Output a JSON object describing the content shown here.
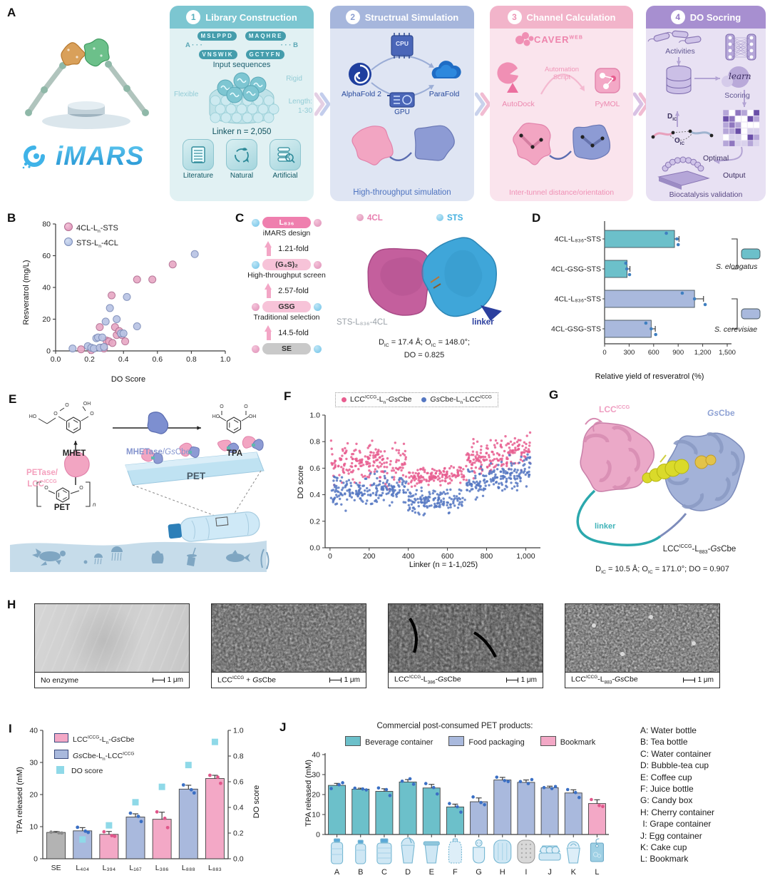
{
  "theme": {
    "teal": "#6cc0ca",
    "teal_dark": "#2e8a99",
    "blue": "#a9b9dd",
    "blue_dark": "#5577c2",
    "pink": "#f3a8c6",
    "pink_dark": "#e85d8f",
    "purple": "#a78fd0",
    "gray": "#b3b3b3",
    "cyan_square": "#8fd9e8",
    "logo_blue": "#3fb3e8"
  },
  "panelA": {
    "label": "A",
    "logo": "iMARS",
    "steps": [
      {
        "num": "1",
        "title": "Library Construction",
        "seq_left_top": "MSLPPD",
        "seq_right_top": "MAQHRE",
        "label_a": "A",
        "dots_a": "· · ·",
        "dots_b": "· · ·",
        "label_b": "B",
        "seq_left_bottom": "VNSWIK",
        "seq_right_bottom": "GCTYFN",
        "input_label": "Input sequences",
        "flexible": "Flexible",
        "rigid": "Rigid",
        "length_label": "Length:",
        "length_value": "1-30",
        "linker_label": "Linker n = 2,050",
        "tiles": [
          {
            "label": "Literature"
          },
          {
            "label": "Natural"
          },
          {
            "label": "Artificial"
          }
        ]
      },
      {
        "num": "2",
        "title": "Structrual Simulation",
        "cpu": "CPU",
        "alphafold": "AlphaFold 2",
        "parafold": "ParaFold",
        "gpu": "GPU",
        "caption": "High-throughput simulation"
      },
      {
        "num": "3",
        "title": "Channel Calculation",
        "caver": "CAVER",
        "caver_sup": "WEB",
        "autodock": "AutoDock",
        "automation": "Automation",
        "script": "Script",
        "pymol": "PyMOL",
        "caption": "Inter-tunnel distance/orientation"
      },
      {
        "num": "4",
        "title": "DO Socring",
        "activities": "Activities",
        "learn": "learn",
        "scoring": "Scoring",
        "dic_html": "D<sub>IC</sub>",
        "oic_html": "O<sub>IC</sub>",
        "optimal": "Optimal",
        "output": "Output",
        "caption": "Biocatalysis validation"
      }
    ]
  },
  "panelB": {
    "label": "B",
    "legend": [
      {
        "html": "4CL-L<sub>n</sub>-STS"
      },
      {
        "html": "STS-L<sub>n</sub>-4CL"
      }
    ]
  },
  "panelC": {
    "label": "C",
    "ladder": [
      {
        "type": "chip",
        "chip": "L₈₃₆",
        "style": "hot",
        "left_dot": "dblue",
        "right_dot": "dpink"
      },
      {
        "type": "lbl",
        "label": "iMARS design"
      },
      {
        "type": "fold",
        "fold": "1.21-fold"
      },
      {
        "type": "chip",
        "chip": "(G₄S)₂",
        "style": "light",
        "left_dot": "dblue",
        "right_dot": "dpink"
      },
      {
        "type": "lbl",
        "label": "High-throughput screen"
      },
      {
        "type": "fold",
        "fold": "2.57-fold"
      },
      {
        "type": "chip",
        "chip": "GSG",
        "style": "light",
        "left_dot": "dpink",
        "right_dot": "dblue"
      },
      {
        "type": "lbl",
        "label": "Traditional selection"
      },
      {
        "type": "fold",
        "fold": "14.5-fold"
      },
      {
        "type": "chip",
        "chip": "SE",
        "style": "gray",
        "left_dot": "dpink",
        "right_dot": "dblue"
      }
    ],
    "legend_4cl": "4CL",
    "legend_sts": "STS",
    "struct_label": "STS-L₈₃₆-4CL",
    "linker_label": "linker",
    "caption_html": "D<sub>IC</sub> = 17.4 Å; O<sub>IC</sub> = 148.0°;<br>DO = 0.825"
  },
  "panelD": {
    "label": "D",
    "groups": [
      {
        "html": "<i>S. elongatus</i>"
      },
      {
        "html": "<i>S. cerevisiae</i>"
      }
    ]
  },
  "panelE": {
    "label": "E",
    "mhet": "MHET",
    "enzyme_html": "<b>MHETase</b>/<i>Gs</i>Cbe",
    "tpa": "TPA",
    "petase_html": "PETase/<br>LCC<sup>ICCG</sup>",
    "pet_struct": "PET",
    "pet_sheet": "PET",
    "atoms": {
      "o": "O",
      "oh": "OH",
      "ho": "HO",
      "n": "n"
    }
  },
  "panelF": {
    "label": "F",
    "legend": [
      {
        "html": "LCC<sup>ICCG</sup>-L<sub>n</sub>-<i>Gs</i>Cbe",
        "color": "#e85d8f"
      },
      {
        "html": "<i>Gs</i>Cbe-L<sub>n</sub>-LCC<sup>ICCG</sup>",
        "color": "#5577c2"
      }
    ]
  },
  "panelG": {
    "label": "G",
    "lcc_html": "LCC<sup>ICCG</sup>",
    "gscbe_html": "<i>Gs</i>Cbe",
    "linker": "linker",
    "name_html": "LCC<sup>ICCG</sup>-L<sub>883</sub>-<i>Gs</i>Cbe",
    "caption_html": "D<sub>IC</sub> = 10.5 Å; O<sub>IC</sub> = 171.0°; DO = 0.907"
  },
  "panelH": {
    "label": "H",
    "images": [
      {
        "label_html": "No enzyme",
        "scale": "1 μm"
      },
      {
        "label_html": "LCC<sup>ICCG</sup> + <i>Gs</i>Cbe",
        "scale": "1 μm"
      },
      {
        "label_html": "LCC<sup>ICCG</sup>-L<sub>386</sub>-<i>Gs</i>Cbe",
        "scale": "1 μm"
      },
      {
        "label_html": "LCC<sup>ICCG</sup>-L<sub>883</sub>-<i>Gs</i>Cbe",
        "scale": "1 μm"
      }
    ]
  },
  "panelI": {
    "label": "I",
    "legend": [
      {
        "html": "LCC<sup>ICCG</sup>-L<sub>n</sub>-<i>Gs</i>Cbe",
        "color": "#f3a8c6",
        "square": false
      },
      {
        "html": "<i>Gs</i>Cbe-L<sub>n</sub>-LCC<sup>ICCG</sup>",
        "color": "#a9b9dd",
        "square": false
      },
      {
        "html": "DO score",
        "color": "#8fd9e8",
        "square": true
      }
    ]
  },
  "panelJ": {
    "label": "J",
    "products": [
      "A: Water bottle",
      "B: Tea bottle",
      "C: Water container",
      "D: Bubble-tea cup",
      "E: Coffee cup",
      "F: Juice bottle",
      "G: Candy box",
      "H: Cherry container",
      " I: Grape container",
      "J: Egg container",
      "K: Cake cup",
      "L: Bookmark"
    ]
  },
  "chart_data": [
    {
      "id": "B",
      "type": "scatter",
      "xlabel": "DO Score",
      "ylabel": "Resveratrol (mg/L)",
      "xlim": [
        0,
        1
      ],
      "ylim": [
        0,
        80
      ],
      "xticks": [
        {
          "v": 0,
          "l": "0.0"
        },
        {
          "v": 0.2,
          "l": "0.2"
        },
        {
          "v": 0.4,
          "l": "0.4"
        },
        {
          "v": 0.6,
          "l": "0.6"
        },
        {
          "v": 0.8,
          "l": "0.8"
        },
        {
          "v": 1,
          "l": "1.0"
        }
      ],
      "yticks": [
        {
          "v": 0,
          "l": "0"
        },
        {
          "v": 20,
          "l": "20"
        },
        {
          "v": 40,
          "l": "40"
        },
        {
          "v": 60,
          "l": "60"
        },
        {
          "v": 80,
          "l": "80"
        }
      ],
      "series": [
        {
          "name": "4CL-Ln-STS",
          "fill": "#e8a9c5",
          "stroke": "#b26d92",
          "points": [
            [
              0.15,
              1
            ],
            [
              0.21,
              0.5
            ],
            [
              0.26,
              15
            ],
            [
              0.27,
              2
            ],
            [
              0.285,
              1.5
            ],
            [
              0.3,
              6.5
            ],
            [
              0.315,
              6
            ],
            [
              0.33,
              35
            ],
            [
              0.335,
              5
            ],
            [
              0.35,
              15
            ],
            [
              0.36,
              10
            ],
            [
              0.375,
              12.5
            ],
            [
              0.39,
              10
            ],
            [
              0.41,
              6
            ],
            [
              0.48,
              45
            ],
            [
              0.57,
              45
            ],
            [
              0.69,
              54.5
            ]
          ]
        },
        {
          "name": "STS-Ln-4CL",
          "fill": "#b9c4e4",
          "stroke": "#7c8cb8",
          "points": [
            [
              0.1,
              1.5
            ],
            [
              0.19,
              3
            ],
            [
              0.21,
              2
            ],
            [
              0.225,
              1.5
            ],
            [
              0.24,
              8
            ],
            [
              0.25,
              8.5
            ],
            [
              0.26,
              2
            ],
            [
              0.275,
              8.5
            ],
            [
              0.285,
              2.5
            ],
            [
              0.295,
              18.5
            ],
            [
              0.32,
              27
            ],
            [
              0.36,
              20
            ],
            [
              0.385,
              11
            ],
            [
              0.4,
              11
            ],
            [
              0.42,
              34
            ],
            [
              0.48,
              15.5
            ],
            [
              0.82,
              61
            ]
          ]
        }
      ]
    },
    {
      "id": "D",
      "type": "bar-horizontal",
      "xlabel": "Relative yield of resveratrol (%)",
      "xlim": [
        0,
        1500
      ],
      "xticks": [
        {
          "v": 0,
          "l": "0"
        },
        {
          "v": 300,
          "l": "300"
        },
        {
          "v": 600,
          "l": "600"
        },
        {
          "v": 900,
          "l": "900"
        },
        {
          "v": 1200,
          "l": "1,200"
        },
        {
          "v": 1500,
          "l": "1,500"
        }
      ],
      "categories": [
        "4CL-L₈₃₆-STS",
        "4CL-GSG-STS",
        "4CL-L₈₃₆-STS",
        "4CL-GSG-STS"
      ],
      "values": [
        855,
        275,
        1100,
        570
      ],
      "errors": [
        55,
        35,
        110,
        50
      ],
      "colors": [
        "#6cc0ca",
        "#6cc0ca",
        "#a9b9dd",
        "#a9b9dd"
      ],
      "dots": [
        [
          755,
          885,
          900
        ],
        [
          260,
          272,
          305
        ],
        [
          950,
          1100,
          1230
        ],
        [
          505,
          570,
          625
        ]
      ],
      "dot_color": "#3f7fc0",
      "groups": [
        {
          "bars": [
            0,
            1
          ],
          "organism": "S. elongatus",
          "swatch": "#6cc0ca"
        },
        {
          "bars": [
            2,
            3
          ],
          "organism": "S. cerevisiae",
          "swatch": "#a9b9dd"
        }
      ]
    },
    {
      "id": "F",
      "type": "scatter-dense",
      "xlabel": "Linker (n = 1-1,025)",
      "ylabel": "DO score",
      "xlim": [
        -25,
        1075
      ],
      "ylim": [
        0,
        1
      ],
      "seed": 42,
      "point_radius": 1.7,
      "xticks": [
        {
          "v": 0,
          "l": "0"
        },
        {
          "v": 200,
          "l": "200"
        },
        {
          "v": 400,
          "l": "400"
        },
        {
          "v": 600,
          "l": "600"
        },
        {
          "v": 800,
          "l": "800"
        },
        {
          "v": 1000,
          "l": "1,000"
        }
      ],
      "yticks": [
        {
          "v": 0,
          "l": "0.0"
        },
        {
          "v": 0.2,
          "l": "0.2"
        },
        {
          "v": 0.4,
          "l": "0.4"
        },
        {
          "v": 0.6,
          "l": "0.6"
        },
        {
          "v": 0.8,
          "l": "0.8"
        },
        {
          "v": 1,
          "l": "1.0"
        }
      ],
      "series": [
        {
          "name": "LCC-ICCG-Ln-GsCbe",
          "color": "#e85d8f",
          "segments": [
            {
              "x0": 5,
              "x1": 390,
              "n": 200,
              "y0": 0.64,
              "y1": 0.63,
              "ys": 0.105
            },
            {
              "x0": 395,
              "x1": 690,
              "n": 140,
              "y0": 0.52,
              "y1": 0.56,
              "ys": 0.045
            },
            {
              "x0": 695,
              "x1": 1025,
              "n": 180,
              "y0": 0.66,
              "y1": 0.74,
              "ys": 0.09
            }
          ],
          "clamp": [
            0.28,
            0.93
          ]
        },
        {
          "name": "GsCbe-Ln-LCC-ICCG",
          "color": "#5577c2",
          "segments": [
            {
              "x0": 5,
              "x1": 390,
              "n": 200,
              "y0": 0.42,
              "y1": 0.44,
              "ys": 0.085
            },
            {
              "x0": 395,
              "x1": 690,
              "n": 140,
              "y0": 0.34,
              "y1": 0.36,
              "ys": 0.068
            },
            {
              "x0": 695,
              "x1": 1025,
              "n": 180,
              "y0": 0.46,
              "y1": 0.6,
              "ys": 0.085
            }
          ],
          "clamp": [
            0.15,
            0.72
          ]
        }
      ]
    },
    {
      "id": "I",
      "type": "bar-dual",
      "ylabel_left": "TPA released (mM)",
      "ylabel_right": "DO score",
      "ylim_left": [
        0,
        40
      ],
      "ylim_right": [
        0,
        1
      ],
      "yticks_left": [
        {
          "v": 0,
          "l": "0"
        },
        {
          "v": 10,
          "l": "10"
        },
        {
          "v": 20,
          "l": "20"
        },
        {
          "v": 30,
          "l": "30"
        },
        {
          "v": 40,
          "l": "40"
        }
      ],
      "yticks_right": [
        {
          "v": 0,
          "l": "0.0"
        },
        {
          "v": 0.2,
          "l": "0.2"
        },
        {
          "v": 0.4,
          "l": "0.4"
        },
        {
          "v": 0.6,
          "l": "0.6"
        },
        {
          "v": 0.8,
          "l": "0.8"
        },
        {
          "v": 1,
          "l": "1.0"
        }
      ],
      "categories": [
        "SE",
        "L₄₀₄",
        "L₃₉₄",
        "L₁₆₇",
        "L₃₈₆",
        "L₈₈₈",
        "L₈₈₃"
      ],
      "values": [
        8.2,
        8.7,
        7.6,
        13.0,
        12.3,
        21.7,
        25.0
      ],
      "errors": [
        0.3,
        1.0,
        0.9,
        1.0,
        2.2,
        1.2,
        1.0
      ],
      "colors": [
        "#b3b3b3",
        "#a9b9dd",
        "#f3a8c6",
        "#a9b9dd",
        "#f3a8c6",
        "#a9b9dd",
        "#f3a8c6"
      ],
      "dots": [
        [
          8.3,
          8.1,
          8.0
        ],
        [
          9.8,
          8.6,
          8.2
        ],
        [
          8.4,
          7.2,
          7.0
        ],
        [
          14.2,
          13.2,
          11.6
        ],
        [
          14.6,
          12.6,
          9.7
        ],
        [
          23.0,
          21.5,
          20.5
        ],
        [
          26.0,
          25.4,
          23.5
        ]
      ],
      "dot_colors": [
        "#8a8a8a",
        "#3a6fc4",
        "#e0568a",
        "#3a6fc4",
        "#e0568a",
        "#3a6fc4",
        "#e0568a"
      ],
      "do_scores": [
        null,
        0.15,
        0.26,
        0.44,
        0.56,
        0.73,
        0.91
      ],
      "do_color": "#8fd9e8"
    },
    {
      "id": "J",
      "type": "bar",
      "title": "Commercial post-consumed PET products:",
      "ylabel": "TPA released (mM)",
      "ylim": [
        0,
        40
      ],
      "yticks": [
        {
          "v": 0,
          "l": "0"
        },
        {
          "v": 10,
          "l": "10"
        },
        {
          "v": 20,
          "l": "20"
        },
        {
          "v": 30,
          "l": "30"
        },
        {
          "v": 40,
          "l": "40"
        }
      ],
      "legend": [
        {
          "label": "Beverage container",
          "color": "#6cc0ca"
        },
        {
          "label": "Food packaging",
          "color": "#a9b9dd"
        },
        {
          "label": "Bookmark",
          "color": "#f3a8c6"
        }
      ],
      "categories": [
        "A",
        "B",
        "C",
        "D",
        "E",
        "F",
        "G",
        "H",
        "I",
        "J",
        "K",
        "L"
      ],
      "values": [
        24.6,
        22.7,
        21.6,
        26.3,
        23.3,
        13.8,
        16.4,
        27.3,
        26.1,
        23.4,
        20.8,
        15.5
      ],
      "errors": [
        1.0,
        0.5,
        1.3,
        1.2,
        1.8,
        1.4,
        1.9,
        1.3,
        1.2,
        0.8,
        1.6,
        1.9
      ],
      "colors": [
        "#6cc0ca",
        "#6cc0ca",
        "#6cc0ca",
        "#6cc0ca",
        "#6cc0ca",
        "#6cc0ca",
        "#a9b9dd",
        "#a9b9dd",
        "#a9b9dd",
        "#a9b9dd",
        "#a9b9dd",
        "#f3a8c6"
      ],
      "dots": [
        [
          23.0,
          24.9,
          25.9
        ],
        [
          23.2,
          22.8,
          22.3
        ],
        [
          23.3,
          22.5,
          19.5
        ],
        [
          26.7,
          27.9,
          25.2
        ],
        [
          25.5,
          23.5,
          20.3
        ],
        [
          15.5,
          13.9,
          11.2
        ],
        [
          18.8,
          16.0,
          14.9
        ],
        [
          28.7,
          27.0,
          26.5
        ],
        [
          26.5,
          25.5,
          27.5
        ],
        [
          23.5,
          23.0,
          24.0
        ],
        [
          22.5,
          21.0,
          18.5
        ],
        [
          17.5,
          14.5,
          14.0
        ]
      ],
      "dot_colors": [
        "#3a6fc4",
        "#3a6fc4",
        "#3a6fc4",
        "#3a6fc4",
        "#3a6fc4",
        "#3a6fc4",
        "#3a6fc4",
        "#3a6fc4",
        "#3a6fc4",
        "#3a6fc4",
        "#3a6fc4",
        "#e0568a"
      ],
      "icons": [
        "water-bottle",
        "tea-bottle",
        "water-container",
        "bubble-tea-cup",
        "coffee-cup",
        "juice-bottle",
        "candy-box",
        "cherry-container",
        "grape-container",
        "egg-container",
        "cake-cup",
        "bookmark-tag"
      ]
    }
  ]
}
